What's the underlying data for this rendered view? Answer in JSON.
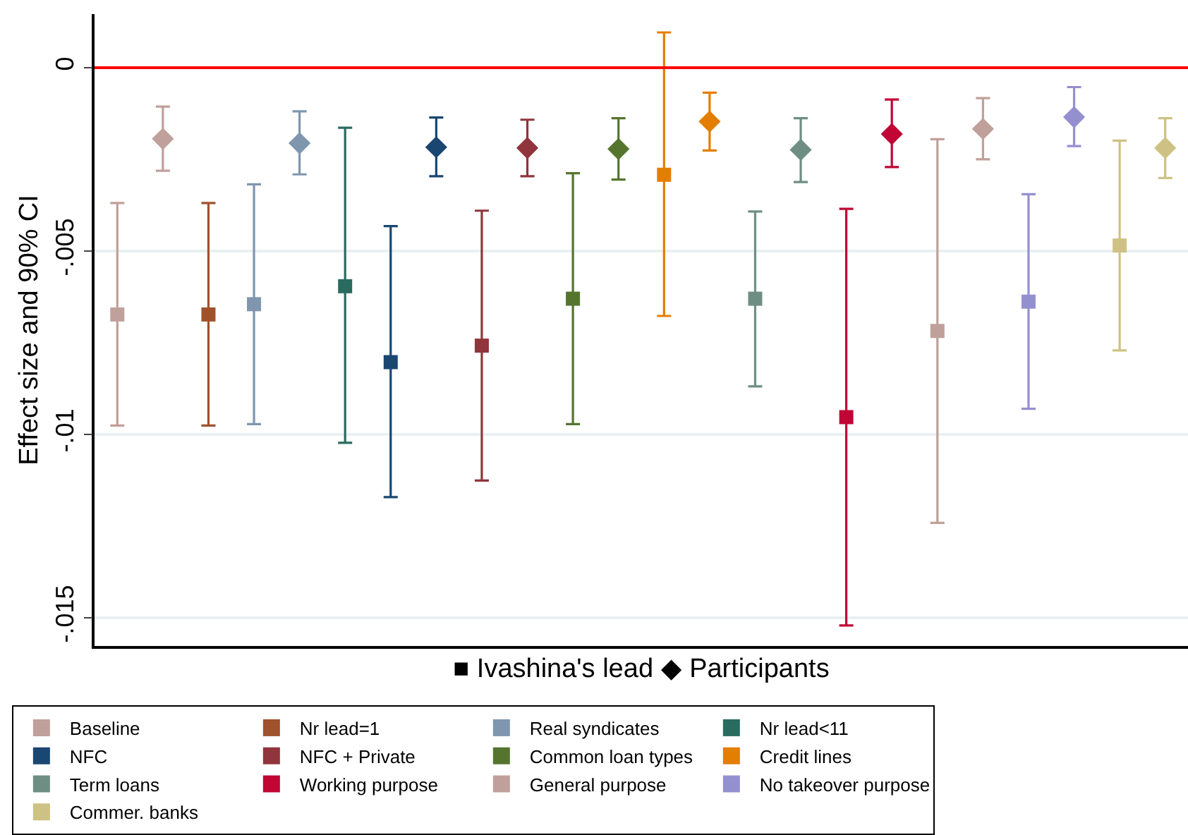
{
  "chart_data": {
    "type": "scatter",
    "xlabel": "■ Ivashina's lead ◆ Participants",
    "ylabel": "Effect size and 90% CI",
    "categories": [
      null,
      null,
      null,
      null,
      null,
      null,
      null,
      null,
      null,
      null,
      null,
      null,
      null,
      null,
      null,
      null,
      null,
      null,
      null,
      null,
      null,
      null,
      null,
      null
    ],
    "ylim": [
      -0.01577,
      0.00146
    ],
    "yticks": [
      {
        "value": -0.015,
        "label": "-.015"
      },
      {
        "value": -0.01,
        "label": "-.01"
      },
      {
        "value": -0.005,
        "label": "-.005"
      },
      {
        "value": 0,
        "label": "0"
      }
    ],
    "tick_labels": "y",
    "grid": "y",
    "legend": "bottom",
    "ref_lines": [
      {
        "axis": "y",
        "value": 0,
        "color": "#ff0000"
      }
    ],
    "series": [
      {
        "name": "Baseline",
        "color": "#c0a09a",
        "marker": "square",
        "values": [
          -0.00673,
          null,
          null,
          null,
          null,
          null,
          null,
          null,
          null,
          null,
          null,
          null,
          null,
          null,
          null,
          null,
          null,
          null,
          null,
          null,
          null,
          null,
          null,
          null
        ],
        "errors": [
          [
            -0.00976,
            -0.00369
          ],
          null,
          null,
          null,
          null,
          null,
          null,
          null,
          null,
          null,
          null,
          null,
          null,
          null,
          null,
          null,
          null,
          null,
          null,
          null,
          null,
          null,
          null,
          null
        ]
      },
      {
        "color": "#c0a09a",
        "marker": "diamond",
        "values": [
          null,
          -0.00194,
          null,
          null,
          null,
          null,
          null,
          null,
          null,
          null,
          null,
          null,
          null,
          null,
          null,
          null,
          null,
          null,
          null,
          null,
          null,
          null,
          null,
          null
        ],
        "errors": [
          null,
          [
            -0.00281,
            -0.00106
          ],
          null,
          null,
          null,
          null,
          null,
          null,
          null,
          null,
          null,
          null,
          null,
          null,
          null,
          null,
          null,
          null,
          null,
          null,
          null,
          null,
          null,
          null
        ]
      },
      {
        "name": "Nr lead=1",
        "color": "#a0522d",
        "marker": "square",
        "values": [
          null,
          null,
          -0.00673,
          null,
          null,
          null,
          null,
          null,
          null,
          null,
          null,
          null,
          null,
          null,
          null,
          null,
          null,
          null,
          null,
          null,
          null,
          null,
          null,
          null
        ],
        "errors": [
          null,
          null,
          [
            -0.00976,
            -0.00369
          ],
          null,
          null,
          null,
          null,
          null,
          null,
          null,
          null,
          null,
          null,
          null,
          null,
          null,
          null,
          null,
          null,
          null,
          null,
          null,
          null,
          null
        ]
      },
      {
        "name": "Real syndicates",
        "color": "#7f96ae",
        "marker": "square",
        "values": [
          null,
          null,
          null,
          -0.00645,
          null,
          null,
          null,
          null,
          null,
          null,
          null,
          null,
          null,
          null,
          null,
          null,
          null,
          null,
          null,
          null,
          null,
          null,
          null,
          null
        ],
        "errors": [
          null,
          null,
          null,
          [
            -0.00972,
            -0.00318
          ],
          null,
          null,
          null,
          null,
          null,
          null,
          null,
          null,
          null,
          null,
          null,
          null,
          null,
          null,
          null,
          null,
          null,
          null,
          null,
          null
        ]
      },
      {
        "color": "#7f96ae",
        "marker": "diamond",
        "values": [
          null,
          null,
          null,
          null,
          -0.00206,
          null,
          null,
          null,
          null,
          null,
          null,
          null,
          null,
          null,
          null,
          null,
          null,
          null,
          null,
          null,
          null,
          null,
          null,
          null
        ],
        "errors": [
          null,
          null,
          null,
          null,
          [
            -0.00291,
            -0.00119
          ],
          null,
          null,
          null,
          null,
          null,
          null,
          null,
          null,
          null,
          null,
          null,
          null,
          null,
          null,
          null,
          null,
          null,
          null,
          null
        ]
      },
      {
        "name": "Nr lead<11",
        "color": "#2a6b5f",
        "marker": "square",
        "values": [
          null,
          null,
          null,
          null,
          null,
          -0.00596,
          null,
          null,
          null,
          null,
          null,
          null,
          null,
          null,
          null,
          null,
          null,
          null,
          null,
          null,
          null,
          null,
          null,
          null
        ],
        "errors": [
          null,
          null,
          null,
          null,
          null,
          [
            -0.01023,
            -0.00164
          ],
          null,
          null,
          null,
          null,
          null,
          null,
          null,
          null,
          null,
          null,
          null,
          null,
          null,
          null,
          null,
          null,
          null,
          null
        ]
      },
      {
        "name": "NFC",
        "color": "#1a4672",
        "marker": "square",
        "values": [
          null,
          null,
          null,
          null,
          null,
          null,
          -0.00803,
          null,
          null,
          null,
          null,
          null,
          null,
          null,
          null,
          null,
          null,
          null,
          null,
          null,
          null,
          null,
          null,
          null
        ],
        "errors": [
          null,
          null,
          null,
          null,
          null,
          null,
          [
            -0.01171,
            -0.00432
          ],
          null,
          null,
          null,
          null,
          null,
          null,
          null,
          null,
          null,
          null,
          null,
          null,
          null,
          null,
          null,
          null,
          null
        ]
      },
      {
        "color": "#1a4672",
        "marker": "diamond",
        "values": [
          null,
          null,
          null,
          null,
          null,
          null,
          null,
          -0.00217,
          null,
          null,
          null,
          null,
          null,
          null,
          null,
          null,
          null,
          null,
          null,
          null,
          null,
          null,
          null,
          null
        ],
        "errors": [
          null,
          null,
          null,
          null,
          null,
          null,
          null,
          [
            -0.00296,
            -0.00136
          ],
          null,
          null,
          null,
          null,
          null,
          null,
          null,
          null,
          null,
          null,
          null,
          null,
          null,
          null,
          null,
          null
        ]
      },
      {
        "name": "NFC + Private",
        "color": "#90353b",
        "marker": "square",
        "values": [
          null,
          null,
          null,
          null,
          null,
          null,
          null,
          null,
          -0.00758,
          null,
          null,
          null,
          null,
          null,
          null,
          null,
          null,
          null,
          null,
          null,
          null,
          null,
          null,
          null
        ],
        "errors": [
          null,
          null,
          null,
          null,
          null,
          null,
          null,
          null,
          [
            -0.01126,
            -0.0039
          ],
          null,
          null,
          null,
          null,
          null,
          null,
          null,
          null,
          null,
          null,
          null,
          null,
          null,
          null,
          null
        ]
      },
      {
        "color": "#90353b",
        "marker": "diamond",
        "values": [
          null,
          null,
          null,
          null,
          null,
          null,
          null,
          null,
          null,
          -0.00219,
          null,
          null,
          null,
          null,
          null,
          null,
          null,
          null,
          null,
          null,
          null,
          null,
          null,
          null
        ],
        "errors": [
          null,
          null,
          null,
          null,
          null,
          null,
          null,
          null,
          null,
          [
            -0.00296,
            -0.00142
          ],
          null,
          null,
          null,
          null,
          null,
          null,
          null,
          null,
          null,
          null,
          null,
          null,
          null,
          null
        ]
      },
      {
        "name": "Common loan types",
        "color": "#55752f",
        "marker": "square",
        "values": [
          null,
          null,
          null,
          null,
          null,
          null,
          null,
          null,
          null,
          null,
          -0.0063,
          null,
          null,
          null,
          null,
          null,
          null,
          null,
          null,
          null,
          null,
          null,
          null,
          null
        ],
        "errors": [
          null,
          null,
          null,
          null,
          null,
          null,
          null,
          null,
          null,
          null,
          [
            -0.00972,
            -0.00288
          ],
          null,
          null,
          null,
          null,
          null,
          null,
          null,
          null,
          null,
          null,
          null,
          null,
          null
        ]
      },
      {
        "color": "#55752f",
        "marker": "diamond",
        "values": [
          null,
          null,
          null,
          null,
          null,
          null,
          null,
          null,
          null,
          null,
          null,
          -0.00222,
          null,
          null,
          null,
          null,
          null,
          null,
          null,
          null,
          null,
          null,
          null,
          null
        ],
        "errors": [
          null,
          null,
          null,
          null,
          null,
          null,
          null,
          null,
          null,
          null,
          null,
          [
            -0.00305,
            -0.00138
          ],
          null,
          null,
          null,
          null,
          null,
          null,
          null,
          null,
          null,
          null,
          null,
          null
        ]
      },
      {
        "name": "Credit lines",
        "color": "#e37e00",
        "marker": "square",
        "values": [
          null,
          null,
          null,
          null,
          null,
          null,
          null,
          null,
          null,
          null,
          null,
          null,
          -0.00292,
          null,
          null,
          null,
          null,
          null,
          null,
          null,
          null,
          null,
          null,
          null
        ],
        "errors": [
          null,
          null,
          null,
          null,
          null,
          null,
          null,
          null,
          null,
          null,
          null,
          null,
          [
            -0.00677,
            0.00096
          ],
          null,
          null,
          null,
          null,
          null,
          null,
          null,
          null,
          null,
          null,
          null
        ]
      },
      {
        "color": "#e37e00",
        "marker": "diamond",
        "values": [
          null,
          null,
          null,
          null,
          null,
          null,
          null,
          null,
          null,
          null,
          null,
          null,
          null,
          -0.00147,
          null,
          null,
          null,
          null,
          null,
          null,
          null,
          null,
          null,
          null
        ],
        "errors": [
          null,
          null,
          null,
          null,
          null,
          null,
          null,
          null,
          null,
          null,
          null,
          null,
          null,
          [
            -0.00226,
            -0.00068
          ],
          null,
          null,
          null,
          null,
          null,
          null,
          null,
          null,
          null,
          null
        ]
      },
      {
        "name": "Term loans",
        "color": "#6e8e84",
        "marker": "square",
        "values": [
          null,
          null,
          null,
          null,
          null,
          null,
          null,
          null,
          null,
          null,
          null,
          null,
          null,
          null,
          -0.0063,
          null,
          null,
          null,
          null,
          null,
          null,
          null,
          null,
          null
        ],
        "errors": [
          null,
          null,
          null,
          null,
          null,
          null,
          null,
          null,
          null,
          null,
          null,
          null,
          null,
          null,
          [
            -0.00869,
            -0.00392
          ],
          null,
          null,
          null,
          null,
          null,
          null,
          null,
          null,
          null
        ]
      },
      {
        "color": "#6e8e84",
        "marker": "diamond",
        "values": [
          null,
          null,
          null,
          null,
          null,
          null,
          null,
          null,
          null,
          null,
          null,
          null,
          null,
          null,
          null,
          -0.00224,
          null,
          null,
          null,
          null,
          null,
          null,
          null,
          null
        ],
        "errors": [
          null,
          null,
          null,
          null,
          null,
          null,
          null,
          null,
          null,
          null,
          null,
          null,
          null,
          null,
          null,
          [
            -0.00312,
            -0.00138
          ],
          null,
          null,
          null,
          null,
          null,
          null,
          null,
          null
        ]
      },
      {
        "name": "Working purpose",
        "color": "#c10534",
        "marker": "square",
        "values": [
          null,
          null,
          null,
          null,
          null,
          null,
          null,
          null,
          null,
          null,
          null,
          null,
          null,
          null,
          null,
          null,
          -0.00953,
          null,
          null,
          null,
          null,
          null,
          null,
          null
        ],
        "errors": [
          null,
          null,
          null,
          null,
          null,
          null,
          null,
          null,
          null,
          null,
          null,
          null,
          null,
          null,
          null,
          null,
          [
            -0.01521,
            -0.00385
          ],
          null,
          null,
          null,
          null,
          null,
          null,
          null
        ]
      },
      {
        "color": "#c10534",
        "marker": "diamond",
        "values": [
          null,
          null,
          null,
          null,
          null,
          null,
          null,
          null,
          null,
          null,
          null,
          null,
          null,
          null,
          null,
          null,
          null,
          -0.00181,
          null,
          null,
          null,
          null,
          null,
          null
        ],
        "errors": [
          null,
          null,
          null,
          null,
          null,
          null,
          null,
          null,
          null,
          null,
          null,
          null,
          null,
          null,
          null,
          null,
          null,
          [
            -0.00271,
            -0.00087
          ],
          null,
          null,
          null,
          null,
          null,
          null
        ]
      },
      {
        "name": "General purpose",
        "color": "#c0a09a",
        "marker": "square",
        "values": [
          null,
          null,
          null,
          null,
          null,
          null,
          null,
          null,
          null,
          null,
          null,
          null,
          null,
          null,
          null,
          null,
          null,
          null,
          -0.00718,
          null,
          null,
          null,
          null,
          null
        ],
        "errors": [
          null,
          null,
          null,
          null,
          null,
          null,
          null,
          null,
          null,
          null,
          null,
          null,
          null,
          null,
          null,
          null,
          null,
          null,
          [
            -0.01241,
            -0.00195
          ],
          null,
          null,
          null,
          null,
          null
        ]
      },
      {
        "color": "#c0a09a",
        "marker": "diamond",
        "values": [
          null,
          null,
          null,
          null,
          null,
          null,
          null,
          null,
          null,
          null,
          null,
          null,
          null,
          null,
          null,
          null,
          null,
          null,
          null,
          -0.00167,
          null,
          null,
          null,
          null
        ],
        "errors": [
          null,
          null,
          null,
          null,
          null,
          null,
          null,
          null,
          null,
          null,
          null,
          null,
          null,
          null,
          null,
          null,
          null,
          null,
          null,
          [
            -0.0025,
            -0.00083
          ],
          null,
          null,
          null,
          null
        ]
      },
      {
        "name": "No takeover purpose",
        "color": "#9490d0",
        "marker": "square",
        "values": [
          null,
          null,
          null,
          null,
          null,
          null,
          null,
          null,
          null,
          null,
          null,
          null,
          null,
          null,
          null,
          null,
          null,
          null,
          null,
          null,
          -0.00638,
          null,
          null,
          null
        ],
        "errors": [
          null,
          null,
          null,
          null,
          null,
          null,
          null,
          null,
          null,
          null,
          null,
          null,
          null,
          null,
          null,
          null,
          null,
          null,
          null,
          null,
          [
            -0.0093,
            -0.00345
          ],
          null,
          null,
          null
        ]
      },
      {
        "color": "#9490d0",
        "marker": "diamond",
        "values": [
          null,
          null,
          null,
          null,
          null,
          null,
          null,
          null,
          null,
          null,
          null,
          null,
          null,
          null,
          null,
          null,
          null,
          null,
          null,
          null,
          null,
          -0.00135,
          null,
          null
        ],
        "errors": [
          null,
          null,
          null,
          null,
          null,
          null,
          null,
          null,
          null,
          null,
          null,
          null,
          null,
          null,
          null,
          null,
          null,
          null,
          null,
          null,
          null,
          [
            -0.00214,
            -0.00053
          ],
          null,
          null
        ]
      },
      {
        "name": "Commer. banks",
        "color": "#cdc283",
        "marker": "square",
        "values": [
          null,
          null,
          null,
          null,
          null,
          null,
          null,
          null,
          null,
          null,
          null,
          null,
          null,
          null,
          null,
          null,
          null,
          null,
          null,
          null,
          null,
          null,
          -0.00485,
          null
        ],
        "errors": [
          null,
          null,
          null,
          null,
          null,
          null,
          null,
          null,
          null,
          null,
          null,
          null,
          null,
          null,
          null,
          null,
          null,
          null,
          null,
          null,
          null,
          null,
          [
            -0.00771,
            -0.00199
          ],
          null
        ]
      },
      {
        "color": "#cdc283",
        "marker": "diamond",
        "values": [
          null,
          null,
          null,
          null,
          null,
          null,
          null,
          null,
          null,
          null,
          null,
          null,
          null,
          null,
          null,
          null,
          null,
          null,
          null,
          null,
          null,
          null,
          null,
          -0.00219
        ],
        "errors": [
          null,
          null,
          null,
          null,
          null,
          null,
          null,
          null,
          null,
          null,
          null,
          null,
          null,
          null,
          null,
          null,
          null,
          null,
          null,
          null,
          null,
          null,
          null,
          [
            -0.00301,
            -0.00138
          ]
        ]
      }
    ]
  }
}
